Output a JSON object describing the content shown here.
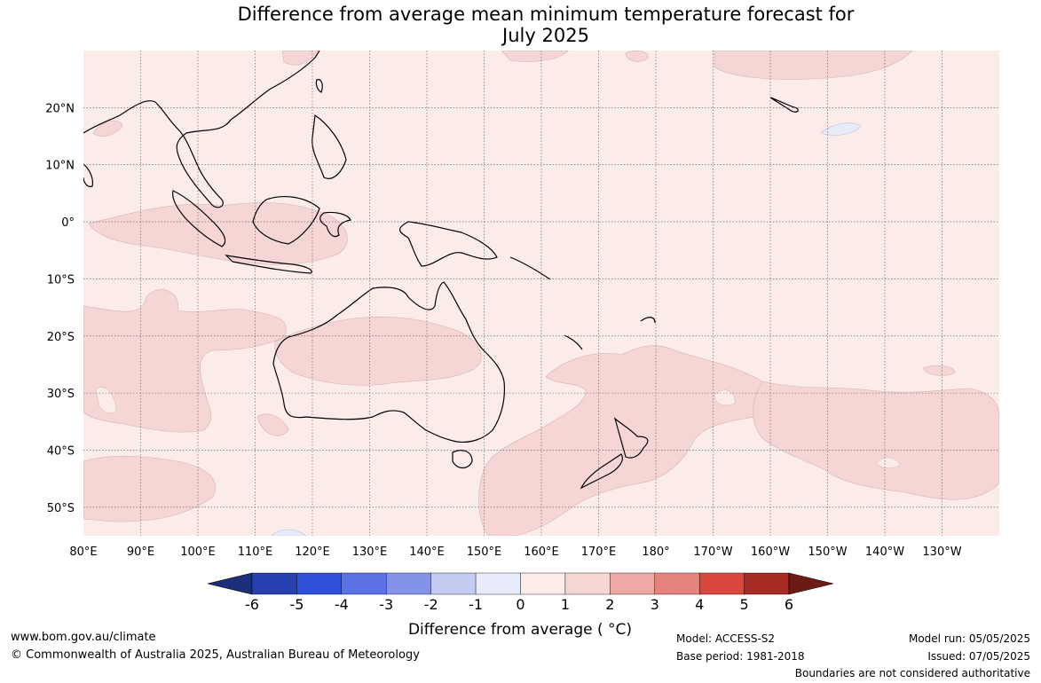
{
  "title": {
    "line1": "Difference from average mean minimum temperature forecast for",
    "line2": "July 2025"
  },
  "map": {
    "lon_min": 80,
    "lon_max": 240,
    "lat_min": -55,
    "lat_max": 30,
    "lon_ticks": [
      "80°E",
      "90°E",
      "100°E",
      "110°E",
      "120°E",
      "130°E",
      "140°E",
      "150°E",
      "160°E",
      "170°E",
      "180°",
      "170°W",
      "160°W",
      "150°W",
      "140°W",
      "130°W"
    ],
    "lat_ticks": [
      "20°N",
      "10°N",
      "0°",
      "10°S",
      "20°S",
      "30°S",
      "40°S",
      "50°S"
    ],
    "background_class": "0 to 1",
    "legend_note": "Boundaries are not considered authoritative"
  },
  "colorbar": {
    "ticks": [
      "-6",
      "-5",
      "-4",
      "-3",
      "-2",
      "-1",
      "0",
      "1",
      "2",
      "3",
      "4",
      "5",
      "6"
    ],
    "label": "Difference from average ( °C)",
    "colors": [
      "#1b2f7a",
      "#2740b0",
      "#2f4fd9",
      "#5a72e3",
      "#8394e8",
      "#c3cbf2",
      "#e8ebfa",
      "#fbecea",
      "#f5d6d4",
      "#eea9a4",
      "#e5847d",
      "#d9473d",
      "#a82a24",
      "#6b1a16"
    ]
  },
  "footer": {
    "website": "www.bom.gov.au/climate",
    "copyright": "© Commonwealth of Australia 2025, Australian Bureau of Meteorology",
    "model": "Model: ACCESS-S2",
    "base_period": "Base period: 1981-2018",
    "model_run": "Model run: 05/05/2025",
    "issued": "Issued: 07/05/2025",
    "disclaimer": "Boundaries are not considered authoritative"
  }
}
